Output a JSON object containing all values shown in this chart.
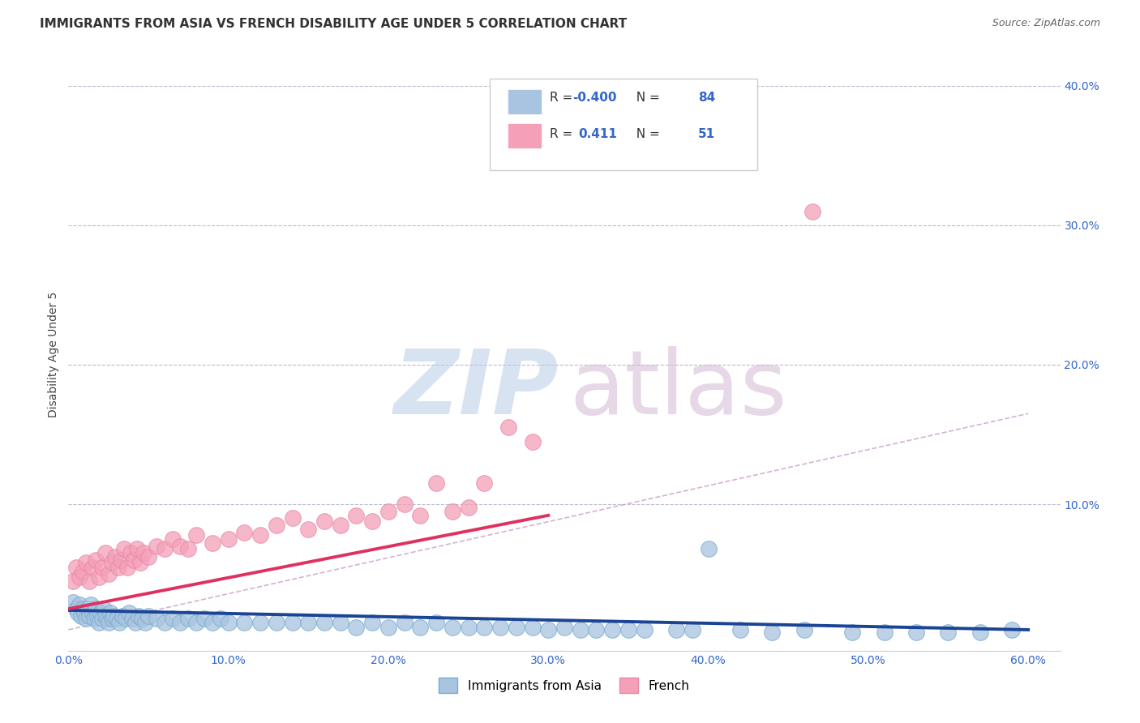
{
  "title": "IMMIGRANTS FROM ASIA VS FRENCH DISABILITY AGE UNDER 5 CORRELATION CHART",
  "source_text": "Source: ZipAtlas.com",
  "ylabel": "Disability Age Under 5",
  "xlim": [
    0.0,
    0.62
  ],
  "ylim": [
    -0.005,
    0.42
  ],
  "xtick_labels": [
    "0.0%",
    "10.0%",
    "20.0%",
    "30.0%",
    "40.0%",
    "50.0%",
    "60.0%"
  ],
  "xtick_vals": [
    0.0,
    0.1,
    0.2,
    0.3,
    0.4,
    0.5,
    0.6
  ],
  "ytick_vals": [
    0.1,
    0.2,
    0.3,
    0.4
  ],
  "right_ytick_labels": [
    "10.0%",
    "20.0%",
    "30.0%",
    "40.0%"
  ],
  "right_ytick_vals": [
    0.1,
    0.2,
    0.3,
    0.4
  ],
  "blue_R": "-0.400",
  "blue_N": "84",
  "pink_R": "0.411",
  "pink_N": "51",
  "blue_color": "#a8c4e0",
  "blue_edge_color": "#7aaad0",
  "blue_line_color": "#1a4494",
  "pink_color": "#f4a0b8",
  "pink_edge_color": "#e888a8",
  "pink_line_color": "#e03060",
  "dash_color": "#c8a0c8",
  "grid_color": "#bbbbcc",
  "background_color": "#ffffff",
  "legend_label_blue": "Immigrants from Asia",
  "legend_label_pink": "French",
  "blue_scatter_x": [
    0.003,
    0.005,
    0.006,
    0.007,
    0.008,
    0.009,
    0.01,
    0.011,
    0.012,
    0.013,
    0.014,
    0.015,
    0.016,
    0.017,
    0.018,
    0.019,
    0.02,
    0.021,
    0.022,
    0.023,
    0.024,
    0.025,
    0.026,
    0.027,
    0.028,
    0.03,
    0.032,
    0.034,
    0.036,
    0.038,
    0.04,
    0.042,
    0.044,
    0.046,
    0.048,
    0.05,
    0.055,
    0.06,
    0.065,
    0.07,
    0.075,
    0.08,
    0.085,
    0.09,
    0.095,
    0.1,
    0.11,
    0.12,
    0.13,
    0.14,
    0.15,
    0.16,
    0.17,
    0.18,
    0.19,
    0.2,
    0.21,
    0.22,
    0.23,
    0.24,
    0.25,
    0.26,
    0.27,
    0.28,
    0.29,
    0.3,
    0.31,
    0.32,
    0.33,
    0.34,
    0.35,
    0.36,
    0.38,
    0.39,
    0.4,
    0.42,
    0.44,
    0.46,
    0.49,
    0.51,
    0.53,
    0.55,
    0.57,
    0.59
  ],
  "blue_scatter_y": [
    0.03,
    0.025,
    0.022,
    0.028,
    0.02,
    0.025,
    0.022,
    0.018,
    0.025,
    0.02,
    0.028,
    0.022,
    0.018,
    0.025,
    0.02,
    0.015,
    0.022,
    0.018,
    0.025,
    0.02,
    0.018,
    0.015,
    0.022,
    0.018,
    0.02,
    0.018,
    0.015,
    0.02,
    0.018,
    0.022,
    0.018,
    0.015,
    0.02,
    0.018,
    0.015,
    0.02,
    0.018,
    0.015,
    0.018,
    0.015,
    0.018,
    0.015,
    0.018,
    0.015,
    0.018,
    0.015,
    0.015,
    0.015,
    0.015,
    0.015,
    0.015,
    0.015,
    0.015,
    0.012,
    0.015,
    0.012,
    0.015,
    0.012,
    0.015,
    0.012,
    0.012,
    0.012,
    0.012,
    0.012,
    0.012,
    0.01,
    0.012,
    0.01,
    0.01,
    0.01,
    0.01,
    0.01,
    0.01,
    0.01,
    0.068,
    0.01,
    0.008,
    0.01,
    0.008,
    0.008,
    0.008,
    0.008,
    0.008,
    0.01
  ],
  "pink_scatter_x": [
    0.003,
    0.005,
    0.007,
    0.009,
    0.011,
    0.013,
    0.015,
    0.017,
    0.019,
    0.021,
    0.023,
    0.025,
    0.027,
    0.029,
    0.031,
    0.033,
    0.035,
    0.037,
    0.039,
    0.041,
    0.043,
    0.045,
    0.047,
    0.05,
    0.055,
    0.06,
    0.065,
    0.07,
    0.075,
    0.08,
    0.09,
    0.1,
    0.11,
    0.12,
    0.13,
    0.14,
    0.15,
    0.16,
    0.17,
    0.18,
    0.19,
    0.2,
    0.21,
    0.22,
    0.23,
    0.24,
    0.25,
    0.26,
    0.275,
    0.29,
    0.465
  ],
  "pink_scatter_y": [
    0.045,
    0.055,
    0.048,
    0.052,
    0.058,
    0.045,
    0.055,
    0.06,
    0.048,
    0.055,
    0.065,
    0.05,
    0.058,
    0.062,
    0.055,
    0.06,
    0.068,
    0.055,
    0.065,
    0.06,
    0.068,
    0.058,
    0.065,
    0.062,
    0.07,
    0.068,
    0.075,
    0.07,
    0.068,
    0.078,
    0.072,
    0.075,
    0.08,
    0.078,
    0.085,
    0.09,
    0.082,
    0.088,
    0.085,
    0.092,
    0.088,
    0.095,
    0.1,
    0.092,
    0.115,
    0.095,
    0.098,
    0.115,
    0.155,
    0.145,
    0.31
  ],
  "blue_trend_x_start": 0.0,
  "blue_trend_x_end": 0.6,
  "blue_trend_y_start": 0.024,
  "blue_trend_y_end": 0.01,
  "pink_trend_x_start": 0.0,
  "pink_trend_x_end": 0.3,
  "pink_trend_y_start": 0.025,
  "pink_trend_y_end": 0.092,
  "dash_trend_x_start": 0.0,
  "dash_trend_x_end": 0.6,
  "dash_trend_y_start": 0.01,
  "dash_trend_y_end": 0.165,
  "title_fontsize": 11,
  "source_fontsize": 9,
  "axis_label_fontsize": 10,
  "tick_fontsize": 10,
  "legend_fontsize": 11
}
